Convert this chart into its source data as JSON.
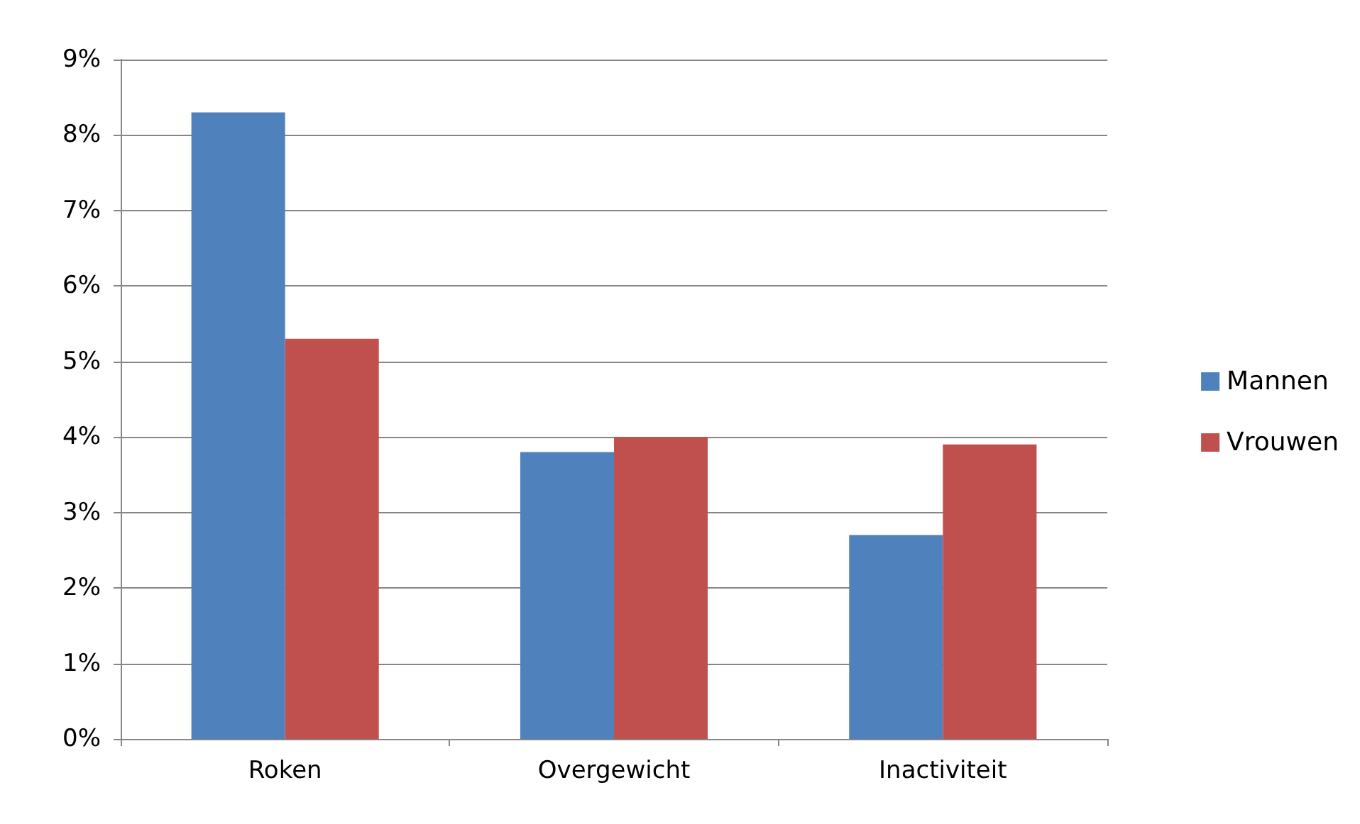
{
  "chart_data": {
    "type": "bar",
    "categories": [
      "Roken",
      "Overgewicht",
      "Inactiviteit"
    ],
    "series": [
      {
        "name": "Mannen",
        "color": "#4f81bd",
        "values": [
          8.3,
          3.8,
          2.7
        ]
      },
      {
        "name": "Vrouwen",
        "color": "#c0504d",
        "values": [
          5.3,
          4.0,
          3.9
        ]
      }
    ],
    "ylim": [
      0,
      9
    ],
    "yticks": [
      {
        "value": 0,
        "label": "0%"
      },
      {
        "value": 1,
        "label": "1%"
      },
      {
        "value": 2,
        "label": "2%"
      },
      {
        "value": 3,
        "label": "3%"
      },
      {
        "value": 4,
        "label": "4%"
      },
      {
        "value": 5,
        "label": "5%"
      },
      {
        "value": 6,
        "label": "6%"
      },
      {
        "value": 7,
        "label": "7%"
      },
      {
        "value": 8,
        "label": "8%"
      },
      {
        "value": 9,
        "label": "9%"
      }
    ],
    "grid": "y",
    "legend": "right"
  }
}
